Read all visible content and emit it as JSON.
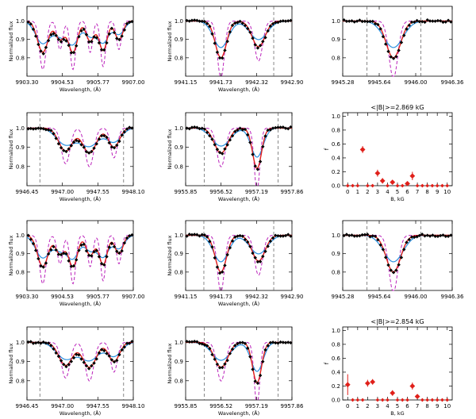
{
  "colors": {
    "observed": "#000000",
    "best_fit": "#e0201a",
    "blue_model": "#2a90e0",
    "dashed_model": "#bb22bb",
    "hist": "#e0201a"
  },
  "chart_data": [
    {
      "type": "line",
      "panel": "r1c1",
      "ylabel": "Normalized flux",
      "xlabel": "Wavelength, (Å)",
      "xlim": [
        9903.3,
        9907.0
      ],
      "ylim": [
        0.7,
        1.08
      ],
      "xticks": [
        "9903.30",
        "9904.53",
        "9905.77",
        "9907.00"
      ],
      "yticks": [
        "0.8",
        "0.9",
        "1.0"
      ],
      "window": [],
      "lines": [
        {
          "lam": 9903.85,
          "w": 0.26,
          "d": 0.17
        },
        {
          "lam": 9904.45,
          "w": 0.22,
          "d": 0.1
        },
        {
          "lam": 9904.9,
          "w": 0.22,
          "d": 0.17
        },
        {
          "lam": 9905.5,
          "w": 0.2,
          "d": 0.11
        },
        {
          "lam": 9905.95,
          "w": 0.2,
          "d": 0.16
        },
        {
          "lam": 9906.5,
          "w": 0.2,
          "d": 0.1
        }
      ]
    },
    {
      "type": "line",
      "panel": "r1c2",
      "ylabel": "Normalized flux",
      "xlabel": "Wavelength, (Å)",
      "xlim": [
        9941.15,
        9942.9
      ],
      "ylim": [
        0.7,
        1.08
      ],
      "xticks": [
        "9941.15",
        "9941.73",
        "9942.32",
        "9942.90"
      ],
      "yticks": [
        "0.8",
        "0.9",
        "1.0"
      ],
      "window": [
        9941.45,
        9942.6
      ],
      "lines": [
        {
          "lam": 9941.73,
          "w": 0.13,
          "d": 0.2
        },
        {
          "lam": 9942.35,
          "w": 0.15,
          "d": 0.14
        }
      ]
    },
    {
      "type": "line",
      "panel": "r1c3",
      "ylabel": "",
      "xlabel": "",
      "xlim": [
        9945.28,
        9946.36
      ],
      "ylim": [
        0.7,
        1.08
      ],
      "xticks": [
        "9945.28",
        "9945.64",
        "9946.00",
        "9946.36"
      ],
      "yticks": [
        "0.8",
        "0.9",
        "1.0"
      ],
      "window": [
        9945.52,
        9946.05
      ],
      "lines": [
        {
          "lam": 9945.78,
          "w": 0.1,
          "d": 0.2
        }
      ]
    },
    {
      "type": "line",
      "panel": "r2c1",
      "ylabel": "Normalized flux",
      "xlabel": "Wavelength, (Å)",
      "xlim": [
        9946.45,
        9948.1
      ],
      "ylim": [
        0.7,
        1.08
      ],
      "xticks": [
        "9946.45",
        "9947.00",
        "9947.55",
        "9948.10"
      ],
      "yticks": [
        "0.8",
        "0.9",
        "1.0"
      ],
      "window": [
        9946.65,
        9947.95
      ],
      "lines": [
        {
          "lam": 9947.05,
          "w": 0.15,
          "d": 0.12
        },
        {
          "lam": 9947.42,
          "w": 0.15,
          "d": 0.13
        },
        {
          "lam": 9947.8,
          "w": 0.12,
          "d": 0.1
        }
      ]
    },
    {
      "type": "line",
      "panel": "r2c2",
      "ylabel": "Normalized flux",
      "xlabel": "Wavelength, (Å)",
      "xlim": [
        9955.85,
        9957.86
      ],
      "ylim": [
        0.7,
        1.08
      ],
      "xticks": [
        "9955.85",
        "9956.52",
        "9957.19",
        "9957.86"
      ],
      "yticks": [
        "0.8",
        "0.9",
        "1.0"
      ],
      "window": [
        9956.2,
        9957.6
      ],
      "lines": [
        {
          "lam": 9956.52,
          "w": 0.18,
          "d": 0.13
        },
        {
          "lam": 9957.2,
          "w": 0.12,
          "d": 0.21
        }
      ]
    },
    {
      "type": "bar",
      "panel": "r2c3",
      "title": "<|B|>=2.869 kG",
      "ylabel": "f",
      "xlabel": "B, kG",
      "xlim": [
        -0.5,
        10.5
      ],
      "ylim": [
        0,
        1.05
      ],
      "xticks": [
        "0",
        "1",
        "2",
        "3",
        "4",
        "5",
        "6",
        "7",
        "8",
        "9",
        "10"
      ],
      "yticks": [
        "0.0",
        "0.2",
        "0.4",
        "0.6",
        "0.8",
        "1.0"
      ],
      "x": [
        0,
        0.5,
        1,
        1.5,
        2,
        2.5,
        3,
        3.5,
        4,
        4.5,
        5,
        5.5,
        6,
        6.5,
        7,
        7.5,
        8,
        8.5,
        9,
        9.5,
        10
      ],
      "values": [
        0,
        0,
        0,
        0.52,
        0,
        0,
        0.18,
        0.07,
        0,
        0.05,
        0,
        0,
        0.03,
        0.14,
        0,
        0,
        0,
        0,
        0,
        0,
        0
      ],
      "errors": [
        0,
        0,
        0,
        0.05,
        0,
        0,
        0.05,
        0.04,
        0,
        0.03,
        0,
        0,
        0.03,
        0.06,
        0,
        0,
        0,
        0,
        0,
        0,
        0
      ]
    },
    {
      "type": "line",
      "panel": "r3c1",
      "ylabel": "Normalized flux",
      "xlabel": "Wavelength, (Å)",
      "xlim": [
        9903.3,
        9907.0
      ],
      "ylim": [
        0.7,
        1.08
      ],
      "xticks": [
        "9903.30",
        "9904.53",
        "9905.77",
        "9907.00"
      ],
      "yticks": [
        "0.8",
        "0.9",
        "1.0"
      ],
      "window": [],
      "lines": [
        {
          "lam": 9903.85,
          "w": 0.26,
          "d": 0.17
        },
        {
          "lam": 9904.45,
          "w": 0.22,
          "d": 0.1
        },
        {
          "lam": 9904.9,
          "w": 0.22,
          "d": 0.17
        },
        {
          "lam": 9905.5,
          "w": 0.2,
          "d": 0.11
        },
        {
          "lam": 9905.95,
          "w": 0.2,
          "d": 0.16
        },
        {
          "lam": 9906.5,
          "w": 0.2,
          "d": 0.1
        }
      ]
    },
    {
      "type": "line",
      "panel": "r3c2",
      "ylabel": "Normalized flux",
      "xlabel": "Wavelength, (Å)",
      "xlim": [
        9941.15,
        9942.9
      ],
      "ylim": [
        0.7,
        1.08
      ],
      "xticks": [
        "9941.15",
        "9941.73",
        "9942.32",
        "9942.90"
      ],
      "yticks": [
        "0.8",
        "0.9",
        "1.0"
      ],
      "window": [
        9941.45,
        9942.6
      ],
      "lines": [
        {
          "lam": 9941.73,
          "w": 0.13,
          "d": 0.2
        },
        {
          "lam": 9942.35,
          "w": 0.15,
          "d": 0.14
        }
      ]
    },
    {
      "type": "line",
      "panel": "r3c3",
      "ylabel": "",
      "xlabel": "",
      "xlim": [
        9945.28,
        9946.36
      ],
      "ylim": [
        0.7,
        1.08
      ],
      "xticks": [
        "9945.28",
        "9945.64",
        "9946.00",
        "9946.36"
      ],
      "yticks": [
        "0.8",
        "0.9",
        "1.0"
      ],
      "window": [
        9945.52,
        9946.05
      ],
      "lines": [
        {
          "lam": 9945.78,
          "w": 0.1,
          "d": 0.2
        }
      ]
    },
    {
      "type": "line",
      "panel": "r4c1",
      "ylabel": "Normalized flux",
      "xlabel": "Wavelength, (Å)",
      "xlim": [
        9946.45,
        9948.1
      ],
      "ylim": [
        0.7,
        1.08
      ],
      "xticks": [
        "9946.45",
        "9947.00",
        "9947.55",
        "9948.10"
      ],
      "yticks": [
        "0.8",
        "0.9",
        "1.0"
      ],
      "window": [
        9946.65,
        9947.95
      ],
      "lines": [
        {
          "lam": 9947.05,
          "w": 0.15,
          "d": 0.12
        },
        {
          "lam": 9947.42,
          "w": 0.15,
          "d": 0.13
        },
        {
          "lam": 9947.8,
          "w": 0.12,
          "d": 0.1
        }
      ]
    },
    {
      "type": "line",
      "panel": "r4c2",
      "ylabel": "Normalized flux",
      "xlabel": "Wavelength, (Å)",
      "xlim": [
        9955.85,
        9957.86
      ],
      "ylim": [
        0.7,
        1.08
      ],
      "xticks": [
        "9955.85",
        "9956.52",
        "9957.19",
        "9957.86"
      ],
      "yticks": [
        "0.8",
        "0.9",
        "1.0"
      ],
      "window": [
        9956.2,
        9957.6
      ],
      "lines": [
        {
          "lam": 9956.52,
          "w": 0.18,
          "d": 0.13
        },
        {
          "lam": 9957.2,
          "w": 0.12,
          "d": 0.21
        }
      ]
    },
    {
      "type": "bar",
      "panel": "r4c3",
      "title": "<|B|>=2.854 kG",
      "ylabel": "f",
      "xlabel": "B, kG",
      "xlim": [
        -0.5,
        10.5
      ],
      "ylim": [
        0,
        1.05
      ],
      "xticks": [
        "0",
        "1",
        "2",
        "3",
        "4",
        "5",
        "6",
        "7",
        "8",
        "9",
        "10"
      ],
      "yticks": [
        "0.0",
        "0.2",
        "0.4",
        "0.6",
        "0.8",
        "1.0"
      ],
      "x": [
        0,
        0.5,
        1,
        1.5,
        2,
        2.5,
        3,
        3.5,
        4,
        4.5,
        5,
        5.5,
        6,
        6.5,
        7,
        7.5,
        8,
        8.5,
        9,
        9.5,
        10
      ],
      "values": [
        0.22,
        0,
        0,
        0,
        0.24,
        0.26,
        0,
        0,
        0,
        0.1,
        0,
        0,
        0,
        0.2,
        0.05,
        0,
        0,
        0,
        0,
        0,
        0
      ],
      "errors": [
        0.15,
        0,
        0,
        0,
        0.05,
        0.04,
        0,
        0,
        0,
        0.04,
        0,
        0,
        0,
        0.05,
        0.03,
        0,
        0,
        0,
        0,
        0,
        0
      ]
    }
  ]
}
